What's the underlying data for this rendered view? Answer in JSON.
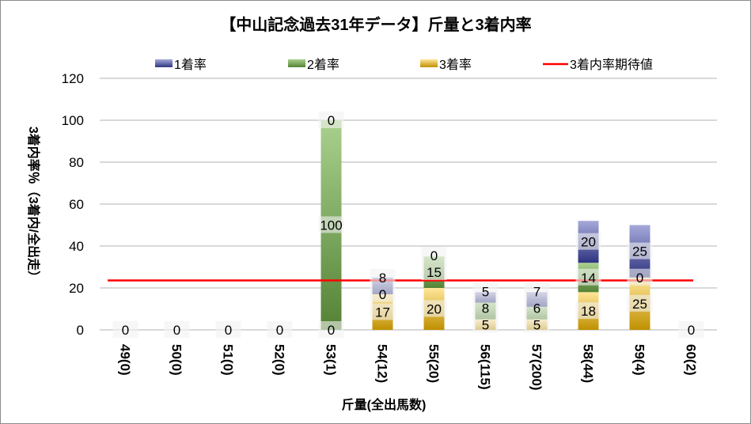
{
  "chart_data": {
    "type": "bar",
    "stacked": true,
    "title": "【中山記念過去31年データ】斤量と3着内率",
    "xlabel": "斤量(全出馬数)",
    "ylabel": "3着内率％（3着内/全出走）",
    "ylim": [
      0,
      120
    ],
    "yticks": [
      0,
      20,
      40,
      60,
      80,
      100,
      120
    ],
    "grid": true,
    "legend_position": "top",
    "categories": [
      "49(0)",
      "50(0)",
      "51(0)",
      "52(0)",
      "53(1)",
      "54(12)",
      "55(20)",
      "56(115)",
      "57(200)",
      "58(44)",
      "59(4)",
      "60(2)"
    ],
    "series": [
      {
        "name": "3着率",
        "values": [
          0,
          0,
          0,
          0,
          0,
          17,
          20,
          5,
          5,
          18,
          25,
          0
        ],
        "color_light": "#ffe699",
        "color_dark": "#bf9000"
      },
      {
        "name": "2着率",
        "values": [
          0,
          0,
          0,
          0,
          100,
          0,
          15,
          8,
          6,
          14,
          0,
          0
        ],
        "color_light": "#a9d18e",
        "color_dark": "#548235"
      },
      {
        "name": "1着率",
        "values": [
          0,
          0,
          0,
          0,
          0,
          8,
          0,
          5,
          7,
          20,
          25,
          0
        ],
        "color_light": "#a5a9d9",
        "color_dark": "#2f3480"
      }
    ],
    "legend_order": [
      "1着率",
      "2着率",
      "3着率",
      "3着内率期待値"
    ],
    "line": {
      "name": "3着内率期待値",
      "value": 23.6,
      "color": "#ff0000"
    }
  }
}
